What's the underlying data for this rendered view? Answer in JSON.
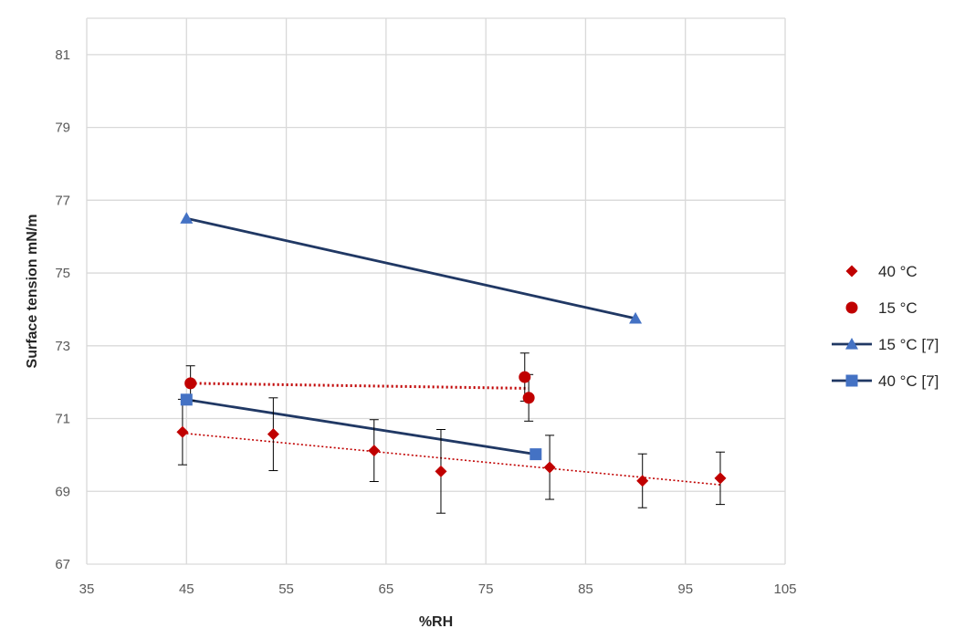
{
  "chart_data": {
    "type": "scatter",
    "xlabel": "%RH",
    "ylabel": "Surface tension mN/m",
    "xlim": [
      35,
      105
    ],
    "ylim": [
      67,
      82
    ],
    "xticks": [
      35,
      45,
      55,
      65,
      75,
      85,
      95,
      105
    ],
    "yticks": [
      67,
      69,
      71,
      73,
      75,
      77,
      79,
      81
    ],
    "grid": true,
    "legend_position": "right",
    "series": [
      {
        "name": "40 °C",
        "marker": "diamond",
        "color": "#C00000",
        "line": "none",
        "trendline": {
          "style": "dotted",
          "color": "#C00000",
          "x": [
            44.6,
            98.5
          ],
          "y": [
            70.6,
            69.18
          ]
        },
        "points": [
          {
            "x": 44.6,
            "y": 70.63,
            "err": 0.9
          },
          {
            "x": 53.7,
            "y": 70.57,
            "err": 1.0
          },
          {
            "x": 63.8,
            "y": 70.12,
            "err": 0.85
          },
          {
            "x": 70.5,
            "y": 69.55,
            "err": 1.15
          },
          {
            "x": 81.4,
            "y": 69.66,
            "err": 0.88
          },
          {
            "x": 90.7,
            "y": 69.29,
            "err": 0.74
          },
          {
            "x": 98.5,
            "y": 69.36,
            "err": 0.72
          }
        ]
      },
      {
        "name": "15 °C",
        "marker": "circle",
        "color": "#C00000",
        "line": "none",
        "trendline": {
          "style": "dotted-bold",
          "color": "#C00000",
          "x": [
            45.4,
            79.3
          ],
          "y": [
            71.97,
            71.83
          ]
        },
        "points": [
          {
            "x": 45.4,
            "y": 71.97,
            "err": 0.48
          },
          {
            "x": 78.9,
            "y": 72.14,
            "err": 0.66
          },
          {
            "x": 79.3,
            "y": 71.57,
            "err": 0.64
          }
        ]
      },
      {
        "name": "15 °C [7]",
        "marker": "triangle",
        "color": "#4472C4",
        "line": "solid",
        "line_color": "#203864",
        "points": [
          {
            "x": 45,
            "y": 76.5
          },
          {
            "x": 90,
            "y": 73.75
          }
        ]
      },
      {
        "name": "40 °C [7]",
        "marker": "square",
        "color": "#4472C4",
        "line": "solid",
        "line_color": "#203864",
        "points": [
          {
            "x": 45,
            "y": 71.52
          },
          {
            "x": 80,
            "y": 70.02
          }
        ]
      }
    ]
  }
}
